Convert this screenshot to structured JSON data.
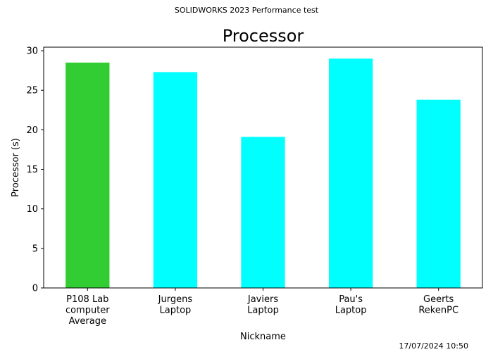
{
  "figure": {
    "suptitle": "SOLIDWORKS 2023 Performance test",
    "timestamp": "17/07/2024 10:50"
  },
  "chart_data": {
    "type": "bar",
    "title": "Processor",
    "xlabel": "Nickname",
    "ylabel": "Processor (s)",
    "categories": [
      [
        "P108 Lab",
        "computer",
        "Average"
      ],
      [
        "Jurgens",
        "Laptop"
      ],
      [
        "Javiers",
        "Laptop"
      ],
      [
        "Pau's",
        "Laptop"
      ],
      [
        "Geerts",
        "RekenPC"
      ]
    ],
    "values": [
      28.5,
      27.3,
      19.1,
      29.0,
      23.8
    ],
    "colors": [
      "#32cd32",
      "#00ffff",
      "#00ffff",
      "#00ffff",
      "#00ffff"
    ],
    "ylim": [
      0,
      30.45
    ],
    "yticks": [
      0,
      5,
      10,
      15,
      20,
      25,
      30
    ],
    "grid": false,
    "legend": "none"
  }
}
